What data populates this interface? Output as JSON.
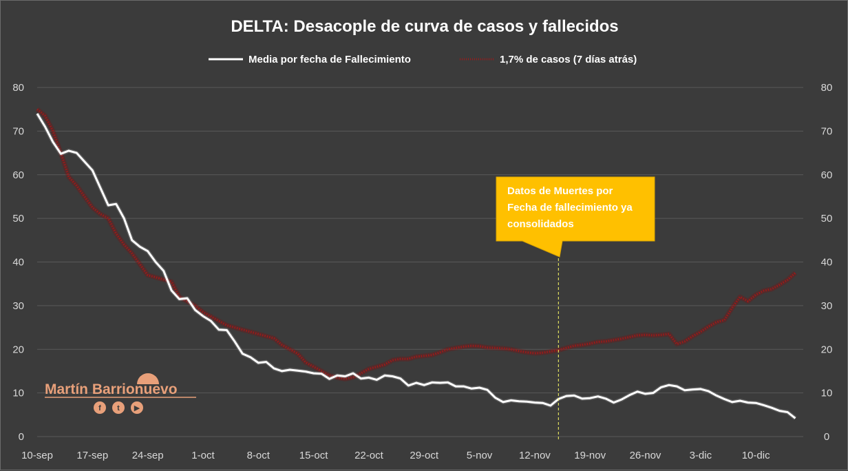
{
  "chart_data": {
    "type": "line",
    "title": "DELTA: Desacople de curva de casos y fallecidos",
    "legend_position": "top",
    "y_ticks": [
      "0",
      "10",
      "20",
      "30",
      "40",
      "50",
      "60",
      "70",
      "80"
    ],
    "ylim": [
      0,
      80
    ],
    "y_axis_right_mirrored": true,
    "grid": true,
    "x_tick_labels": [
      "10-sep",
      "17-sep",
      "24-sep",
      "1-oct",
      "8-oct",
      "15-oct",
      "22-oct",
      "29-oct",
      "5-nov",
      "12-nov",
      "19-nov",
      "26-nov",
      "3-dic",
      "10-dic"
    ],
    "x_tick_days": [
      0,
      7,
      14,
      21,
      28,
      35,
      42,
      49,
      56,
      63,
      70,
      77,
      84,
      91
    ],
    "x_range_days": [
      0,
      97
    ],
    "series": [
      {
        "name": "Media por fecha de Fallecimiento",
        "color": "#ffffff",
        "style": "solid",
        "values": [
          74,
          71,
          67.5,
          64.8,
          65.5,
          65,
          63,
          61,
          57,
          53,
          53.3,
          50,
          45,
          43.5,
          42.5,
          40,
          38,
          33.5,
          31.5,
          31.7,
          29,
          27.6,
          26.5,
          24.5,
          24.4,
          21.8,
          19,
          18.2,
          16.9,
          17.1,
          15.6,
          15,
          15.3,
          15.1,
          14.9,
          14.5,
          14.4,
          13.2,
          14,
          13.8,
          14.5,
          13.3,
          13.5,
          13,
          14,
          13.8,
          13.3,
          11.7,
          12.3,
          11.8,
          12.4,
          12.3,
          12.4,
          11.5,
          11.5,
          11,
          11.2,
          10.7,
          8.9,
          7.9,
          8.3,
          8.1,
          8,
          7.8,
          7.7,
          7.1,
          8.6,
          9.3,
          9.4,
          8.7,
          8.8,
          9.2,
          8.7,
          7.8,
          8.5,
          9.5,
          10.3,
          9.8,
          10,
          11.3,
          11.8,
          11.5,
          10.6,
          10.8,
          10.9,
          10.4,
          9.4,
          8.6,
          7.9,
          8.2,
          7.8,
          7.7,
          7.2,
          6.6,
          5.9,
          5.6,
          4.2
        ]
      },
      {
        "name": "1,7% de casos (7 días atrás)",
        "color": "#a01818",
        "style": "dotted",
        "values": [
          75,
          73.5,
          70,
          65,
          59.5,
          57.5,
          55,
          52.5,
          51,
          50,
          46.5,
          44,
          42,
          39.5,
          37,
          36.5,
          36,
          35.5,
          32,
          31,
          30,
          28.5,
          27.5,
          26.5,
          25.5,
          25,
          24.5,
          24,
          23.5,
          23,
          22.5,
          21,
          20,
          19,
          17,
          16,
          15,
          14,
          13.5,
          13.2,
          13.6,
          14.5,
          15.5,
          16,
          16.5,
          17.5,
          17.8,
          17.8,
          18.3,
          18.5,
          18.7,
          19.3,
          20,
          20.3,
          20.6,
          20.8,
          20.7,
          20.4,
          20.3,
          20.2,
          20,
          19.6,
          19.3,
          19.1,
          19.2,
          19.5,
          19.8,
          20.3,
          20.8,
          21,
          21.3,
          21.7,
          21.8,
          22.1,
          22.4,
          22.8,
          23.2,
          23.3,
          23.2,
          23.3,
          23.5,
          21.2,
          21.8,
          23,
          24,
          25.2,
          26.2,
          26.7,
          29.5,
          32,
          31,
          32.5,
          33.4,
          33.8,
          34.8,
          35.9,
          37.5
        ]
      }
    ],
    "annotation": {
      "text_lines": [
        "Datos de Muertes por",
        "Fecha de fallecimiento ya",
        "consolidados"
      ],
      "color": "#ffc000",
      "marker_day": 66,
      "marker_style": "dashed vertical line"
    }
  },
  "brand": {
    "name": "Martín Barrionuevo",
    "icons": [
      "facebook-icon",
      "twitter-icon",
      "youtube-icon"
    ],
    "icon_glyphs": [
      "f",
      "t",
      "▶"
    ],
    "color": "#e8a07a"
  }
}
